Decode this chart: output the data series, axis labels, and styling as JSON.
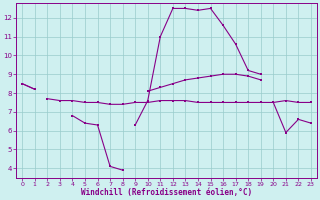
{
  "x": [
    0,
    1,
    2,
    3,
    4,
    5,
    6,
    7,
    8,
    9,
    10,
    11,
    12,
    13,
    14,
    15,
    16,
    17,
    18,
    19,
    20,
    21,
    22,
    23
  ],
  "line_top": [
    8.5,
    8.2,
    null,
    null,
    null,
    null,
    null,
    null,
    null,
    null,
    8.1,
    8.3,
    8.5,
    8.7,
    8.8,
    8.9,
    9.0,
    9.0,
    8.9,
    8.7,
    null,
    null,
    null,
    null
  ],
  "line_mid": [
    null,
    null,
    7.7,
    7.6,
    7.6,
    7.5,
    7.5,
    7.4,
    7.4,
    7.5,
    7.5,
    7.6,
    7.6,
    7.6,
    7.5,
    7.5,
    7.5,
    7.5,
    7.5,
    7.5,
    7.5,
    7.6,
    7.5,
    7.5
  ],
  "line_bot": [
    8.5,
    8.2,
    null,
    null,
    6.8,
    6.4,
    6.3,
    4.1,
    3.9,
    null,
    null,
    null,
    null,
    null,
    null,
    null,
    null,
    null,
    null,
    null,
    null,
    null,
    null,
    null
  ],
  "line_peak": [
    null,
    null,
    null,
    null,
    null,
    null,
    null,
    null,
    null,
    6.3,
    7.6,
    11.0,
    12.5,
    12.5,
    12.4,
    12.5,
    11.6,
    10.6,
    9.2,
    9.0,
    null,
    null,
    null,
    null
  ],
  "line_right": [
    null,
    null,
    null,
    null,
    null,
    null,
    null,
    null,
    null,
    null,
    null,
    null,
    null,
    null,
    null,
    null,
    null,
    null,
    null,
    null,
    7.5,
    5.9,
    6.6,
    6.4
  ],
  "bg_color": "#cff0f0",
  "line_color": "#880088",
  "grid_color": "#99cccc",
  "xlabel": "Windchill (Refroidissement éolien,°C)",
  "xlim": [
    -0.5,
    23.5
  ],
  "ylim": [
    3.5,
    12.8
  ],
  "yticks": [
    4,
    5,
    6,
    7,
    8,
    9,
    10,
    11,
    12
  ],
  "xticks": [
    0,
    1,
    2,
    3,
    4,
    5,
    6,
    7,
    8,
    9,
    10,
    11,
    12,
    13,
    14,
    15,
    16,
    17,
    18,
    19,
    20,
    21,
    22,
    23
  ]
}
